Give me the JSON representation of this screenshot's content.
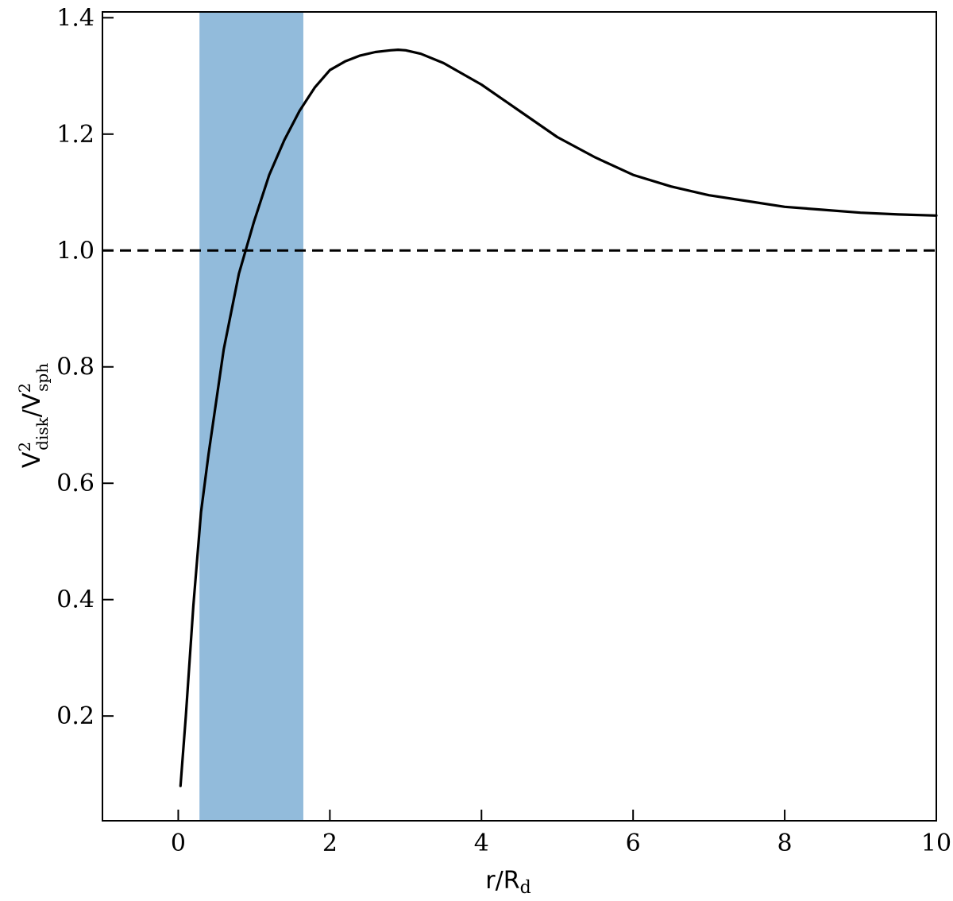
{
  "chart_data": {
    "type": "line",
    "title": "",
    "xlabel": {
      "main": "r/R",
      "sub": "d"
    },
    "ylabel": {
      "num": "V",
      "num_sup": "2",
      "num_sub": "disk",
      "slash": "/",
      "den": "V",
      "den_sup": "2",
      "den_sub": "sph"
    },
    "xlim": [
      -1,
      10
    ],
    "ylim": [
      0.02,
      1.41
    ],
    "x_ticks": [
      0,
      2,
      4,
      6,
      8,
      10
    ],
    "x_tick_labels": [
      "0",
      "2",
      "4",
      "6",
      "8",
      "10"
    ],
    "y_ticks": [
      0.2,
      0.4,
      0.6,
      0.8,
      1.0,
      1.2,
      1.4
    ],
    "y_tick_labels": [
      "0.2",
      "0.4",
      "0.6",
      "0.8",
      "1.0",
      "1.2",
      "1.4"
    ],
    "grid": false,
    "legend": "none",
    "shaded_band": {
      "x0": 0.28,
      "x1": 1.65,
      "color": "#92bbdb"
    },
    "reference_line": {
      "y": 1.0,
      "style": "dashed",
      "color": "#000000"
    },
    "series": [
      {
        "color": "#000000",
        "x": [
          0.03,
          0.1,
          0.2,
          0.3,
          0.4,
          0.6,
          0.8,
          1.0,
          1.2,
          1.4,
          1.6,
          1.8,
          2.0,
          2.2,
          2.4,
          2.6,
          2.8,
          2.9,
          3.0,
          3.2,
          3.5,
          4.0,
          4.5,
          5.0,
          5.5,
          6.0,
          6.5,
          7.0,
          7.5,
          8.0,
          8.5,
          9.0,
          9.5,
          10.0
        ],
        "y": [
          0.08,
          0.2,
          0.39,
          0.55,
          0.65,
          0.83,
          0.96,
          1.05,
          1.13,
          1.19,
          1.24,
          1.28,
          1.31,
          1.325,
          1.335,
          1.341,
          1.344,
          1.345,
          1.344,
          1.338,
          1.322,
          1.285,
          1.24,
          1.195,
          1.16,
          1.13,
          1.11,
          1.095,
          1.085,
          1.075,
          1.07,
          1.065,
          1.062,
          1.06
        ]
      }
    ]
  }
}
